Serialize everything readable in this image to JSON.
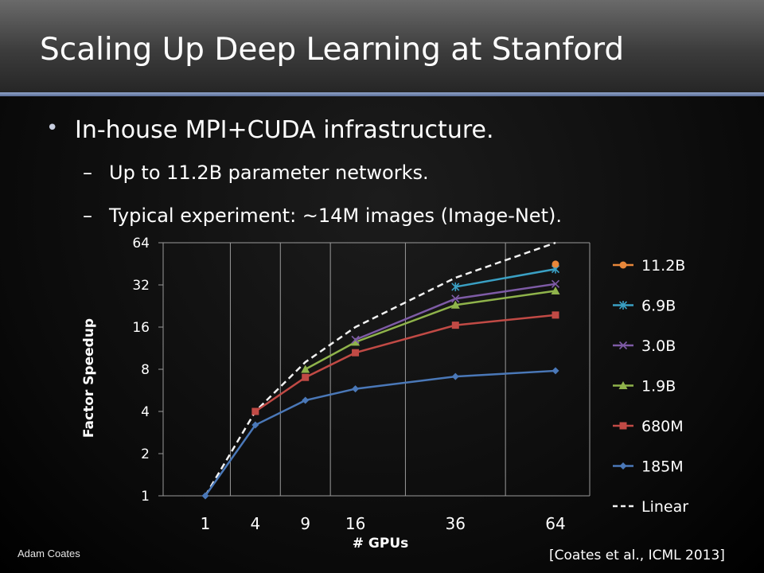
{
  "slide": {
    "title": "Scaling Up Deep Learning at Stanford",
    "bullet": "In-house MPI+CUDA infrastructure.",
    "sub_bullets": [
      "Up to 11.2B parameter networks.",
      "Typical experiment: ~14M images (Image-Net)."
    ],
    "bullet_marker": "•",
    "dash_marker": "–",
    "author": "Adam Coates",
    "citation": "[Coates et al., ICML 2013]"
  },
  "colors": {
    "title_rule": "#7f93bd",
    "grid": "#9a9a9a",
    "axis_text": "#ffffff"
  },
  "chart_data": {
    "type": "line",
    "xlabel": "# GPUs",
    "ylabel": "Factor Speedup",
    "x_scale": "sqrt",
    "y_scale": "log2",
    "x": [
      1,
      4,
      9,
      16,
      36,
      64
    ],
    "x_tick_labels": [
      "1",
      "4",
      "9",
      "16",
      "36",
      "64"
    ],
    "y_ticks": [
      1,
      2,
      4,
      8,
      16,
      32,
      64
    ],
    "y_tick_labels": [
      "1",
      "2",
      "4",
      "8",
      "16",
      "32",
      "64"
    ],
    "ylim": [
      1,
      64
    ],
    "grid": "vertical",
    "legend_position": "right",
    "series": [
      {
        "name": "11.2B",
        "color": "#e8873a",
        "marker": "circle",
        "dashed": false,
        "points": [
          [
            64,
            45
          ]
        ]
      },
      {
        "name": "6.9B",
        "color": "#3aa0c4",
        "marker": "star",
        "dashed": false,
        "points": [
          [
            36,
            31
          ],
          [
            64,
            41.5
          ]
        ]
      },
      {
        "name": "3.0B",
        "color": "#7e5ba6",
        "marker": "x",
        "dashed": false,
        "points": [
          [
            16,
            13
          ],
          [
            36,
            25.5
          ],
          [
            64,
            32.5
          ]
        ]
      },
      {
        "name": "1.9B",
        "color": "#8fb34b",
        "marker": "triangle",
        "dashed": false,
        "points": [
          [
            9,
            8
          ],
          [
            16,
            12.5
          ],
          [
            36,
            23
          ],
          [
            64,
            29
          ]
        ]
      },
      {
        "name": "680M",
        "color": "#c14a45",
        "marker": "square",
        "dashed": false,
        "points": [
          [
            4,
            4
          ],
          [
            9,
            7
          ],
          [
            16,
            10.5
          ],
          [
            36,
            16.5
          ],
          [
            64,
            19.5
          ]
        ]
      },
      {
        "name": "185M",
        "color": "#4a78b8",
        "marker": "diamond",
        "dashed": false,
        "points": [
          [
            1,
            1
          ],
          [
            4,
            3.2
          ],
          [
            9,
            4.8
          ],
          [
            16,
            5.8
          ],
          [
            36,
            7.1
          ],
          [
            64,
            7.8
          ]
        ]
      },
      {
        "name": "Linear",
        "color": "#f2f2f2",
        "marker": "none",
        "dashed": true,
        "points": [
          [
            1,
            1
          ],
          [
            4,
            4
          ],
          [
            9,
            9
          ],
          [
            16,
            16
          ],
          [
            36,
            36
          ],
          [
            64,
            64
          ]
        ]
      }
    ]
  }
}
